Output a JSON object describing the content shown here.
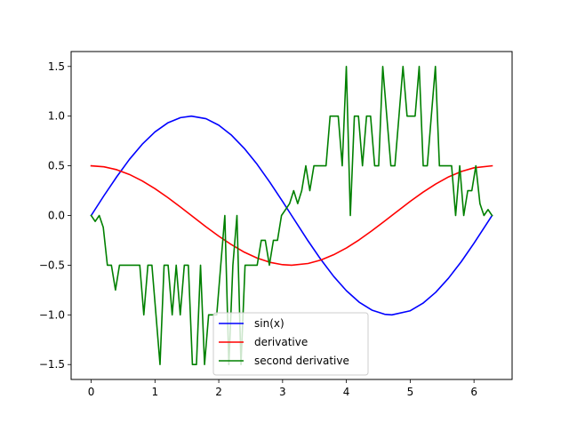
{
  "chart_data": {
    "type": "line",
    "xlim": [
      -0.314,
      6.597
    ],
    "ylim": [
      -1.65,
      1.65
    ],
    "xticks": [
      0,
      1,
      2,
      3,
      4,
      5,
      6
    ],
    "xtick_labels": [
      "0",
      "1",
      "2",
      "3",
      "4",
      "5",
      "6"
    ],
    "yticks": [
      -1.5,
      -1.0,
      -0.5,
      0.0,
      0.5,
      1.0,
      1.5
    ],
    "ytick_labels": [
      "−1.5",
      "−1.0",
      "−0.5",
      "0.0",
      "0.5",
      "1.0",
      "1.5"
    ],
    "grid": false,
    "legend_position": "lower-center",
    "series": [
      {
        "name": "sin(x)",
        "color": "#0000ff",
        "x": [
          0,
          0.2,
          0.4,
          0.6,
          0.8,
          1.0,
          1.2,
          1.4,
          1.5708,
          1.8,
          2.0,
          2.2,
          2.4,
          2.6,
          2.8,
          3.0,
          3.1416,
          3.4,
          3.6,
          3.8,
          4.0,
          4.2,
          4.4,
          4.6,
          4.7124,
          5.0,
          5.2,
          5.4,
          5.6,
          5.8,
          6.0,
          6.2832
        ],
        "y": [
          0,
          0.199,
          0.389,
          0.565,
          0.717,
          0.841,
          0.932,
          0.985,
          1.0,
          0.974,
          0.909,
          0.808,
          0.675,
          0.516,
          0.335,
          0.141,
          0,
          -0.256,
          -0.443,
          -0.612,
          -0.757,
          -0.872,
          -0.952,
          -0.994,
          -1.0,
          -0.959,
          -0.883,
          -0.773,
          -0.631,
          -0.465,
          -0.279,
          0
        ]
      },
      {
        "name": "derivative",
        "color": "#ff0000",
        "x": [
          0,
          0.2,
          0.4,
          0.6,
          0.8,
          1.0,
          1.2,
          1.4,
          1.5708,
          1.8,
          2.0,
          2.2,
          2.4,
          2.6,
          2.8,
          3.0,
          3.1416,
          3.4,
          3.6,
          3.8,
          4.0,
          4.2,
          4.4,
          4.6,
          4.7124,
          5.0,
          5.2,
          5.4,
          5.6,
          5.8,
          6.0,
          6.2832
        ],
        "y": [
          0.5,
          0.49,
          0.461,
          0.413,
          0.348,
          0.27,
          0.181,
          0.085,
          0,
          -0.114,
          -0.208,
          -0.294,
          -0.369,
          -0.428,
          -0.471,
          -0.495,
          -0.5,
          -0.483,
          -0.448,
          -0.395,
          -0.327,
          -0.245,
          -0.153,
          -0.056,
          0,
          0.142,
          0.234,
          0.317,
          0.388,
          0.443,
          0.48,
          0.5
        ]
      },
      {
        "name": "second derivative",
        "color": "#008000",
        "x": [
          0,
          0.063,
          0.127,
          0.19,
          0.254,
          0.317,
          0.381,
          0.444,
          0.508,
          0.571,
          0.635,
          0.698,
          0.762,
          0.825,
          0.889,
          0.952,
          1.016,
          1.079,
          1.143,
          1.206,
          1.27,
          1.333,
          1.396,
          1.46,
          1.523,
          1.587,
          1.65,
          1.714,
          1.777,
          1.841,
          1.904,
          1.968,
          2.031,
          2.095,
          2.158,
          2.221,
          2.285,
          2.348,
          2.412,
          2.475,
          2.539,
          2.602,
          2.666,
          2.729,
          2.793,
          2.856,
          2.92,
          2.983,
          3.047,
          3.11,
          3.174,
          3.237,
          3.3,
          3.364,
          3.427,
          3.491,
          3.554,
          3.618,
          3.681,
          3.745,
          3.808,
          3.872,
          3.935,
          3.999,
          4.062,
          4.125,
          4.189,
          4.252,
          4.316,
          4.379,
          4.443,
          4.506,
          4.57,
          4.633,
          4.697,
          4.76,
          4.824,
          4.887,
          4.951,
          5.014,
          5.077,
          5.141,
          5.204,
          5.268,
          5.331,
          5.395,
          5.458,
          5.522,
          5.585,
          5.649,
          5.712,
          5.776,
          5.839,
          5.902,
          5.966,
          6.029,
          6.093,
          6.156,
          6.22,
          6.283
        ],
        "y": [
          0,
          -0.06,
          0,
          -0.12,
          -0.5,
          -0.5,
          -0.75,
          -0.5,
          -0.5,
          -0.5,
          -0.5,
          -0.5,
          -0.5,
          -1.0,
          -0.5,
          -0.5,
          -1.0,
          -1.5,
          -0.5,
          -0.5,
          -1.0,
          -0.5,
          -1.0,
          -0.5,
          -0.5,
          -1.5,
          -1.5,
          -0.5,
          -1.5,
          -1.0,
          -1.0,
          -1.0,
          -0.5,
          0,
          -1.5,
          -0.5,
          0,
          -1.5,
          -0.5,
          -0.5,
          -0.5,
          -0.5,
          -0.25,
          -0.25,
          -0.5,
          -0.25,
          -0.25,
          0,
          0.06,
          0.12,
          0.25,
          0.12,
          0.25,
          0.5,
          0.25,
          0.5,
          0.5,
          0.5,
          0.5,
          1.0,
          1.0,
          1.0,
          0.5,
          1.5,
          0,
          1.0,
          1.0,
          0.5,
          1.0,
          1.0,
          0.5,
          0.5,
          1.5,
          1.0,
          0.5,
          0.5,
          1.0,
          1.5,
          1.0,
          1.0,
          1.0,
          1.5,
          0.5,
          0.5,
          1.0,
          1.5,
          0.5,
          0.5,
          0.5,
          0.5,
          0,
          0.5,
          0,
          0.25,
          0.25,
          0.5,
          0.12,
          0,
          0.06,
          0
        ]
      }
    ]
  }
}
